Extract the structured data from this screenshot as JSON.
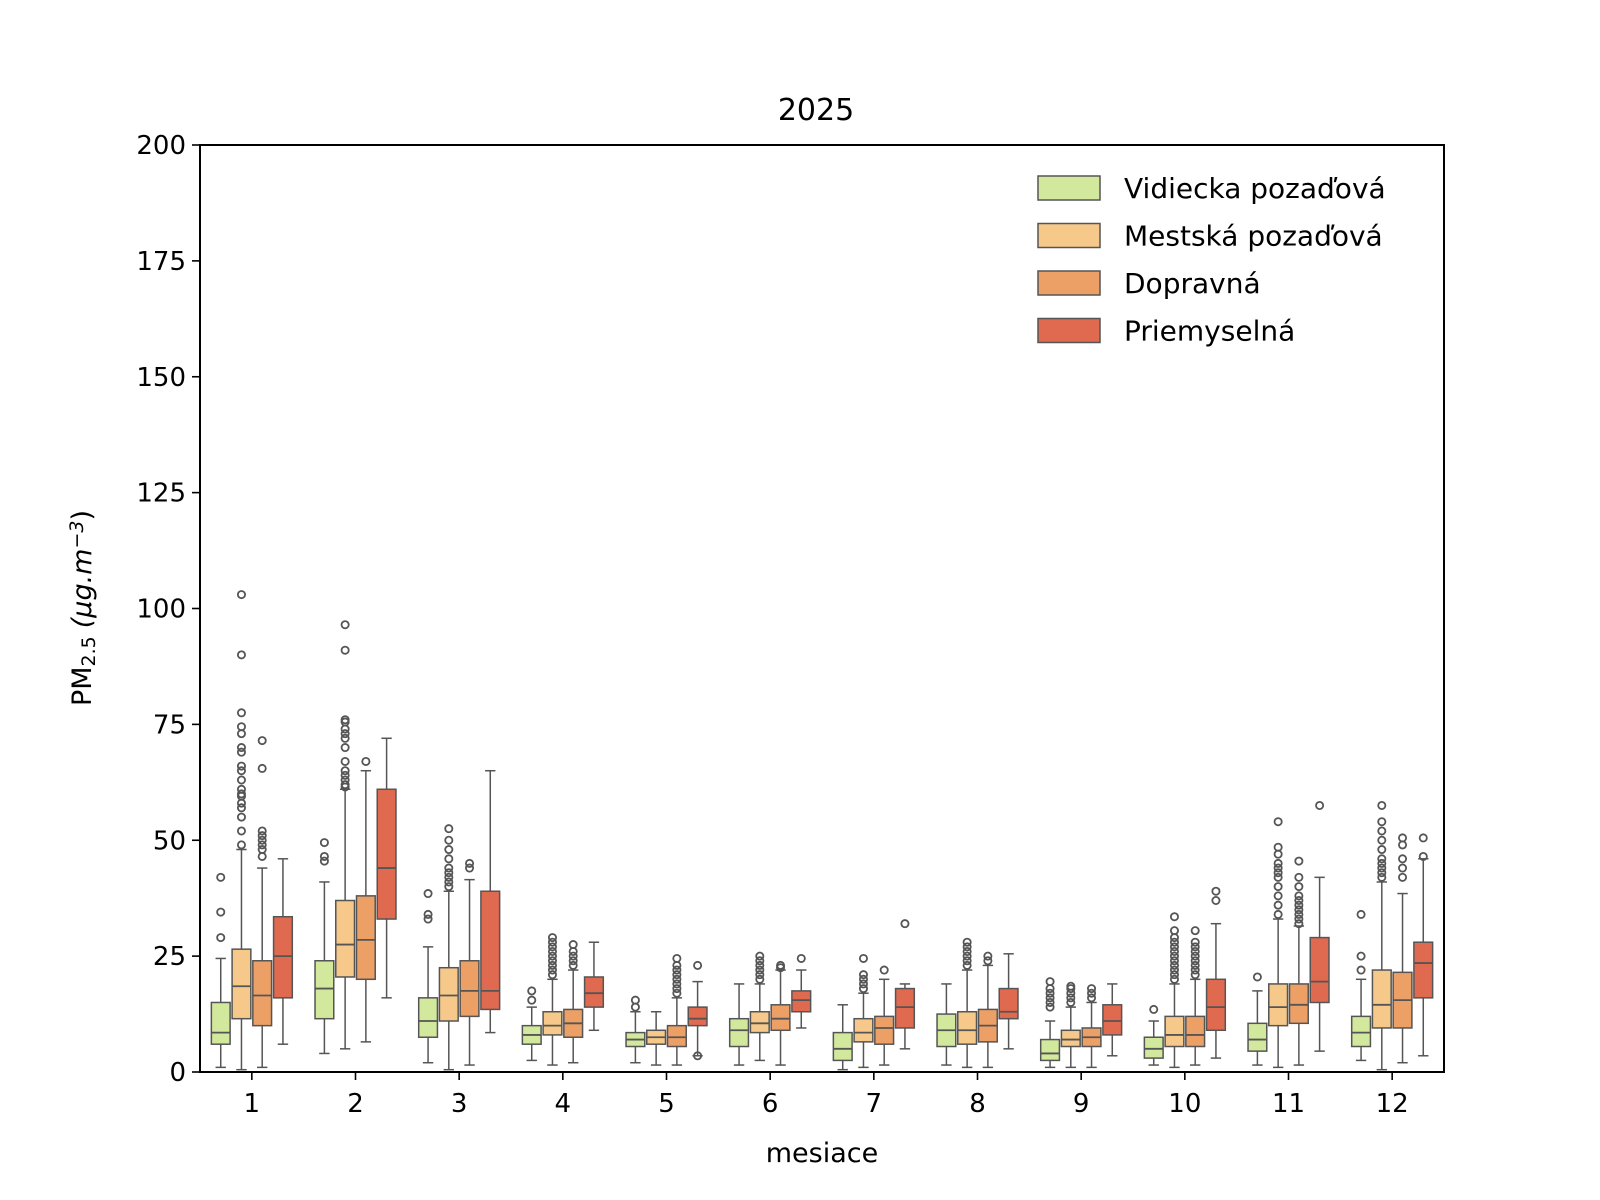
{
  "chart_data": {
    "type": "box",
    "title": "2025",
    "xlabel": "mesiace",
    "ylabel_main": "PM",
    "ylabel_sub": "2.5",
    "ylabel_unit": "(µg.m",
    "ylabel_sup": "−3",
    "ylabel_close": ")",
    "ylim": [
      0,
      200
    ],
    "yticks": [
      0,
      25,
      50,
      75,
      100,
      125,
      150,
      175,
      200
    ],
    "categories": [
      "1",
      "2",
      "3",
      "4",
      "5",
      "6",
      "7",
      "8",
      "9",
      "10",
      "11",
      "12"
    ],
    "colors": {
      "Vidiecka pozaďová": "#d2e89c",
      "Mestská pozaďová": "#f6c98a",
      "Dopravná": "#eca066",
      "Priemyselná": "#e06a50",
      "edge": "#555555"
    },
    "series": [
      {
        "name": "Vidiecka pozaďová",
        "boxes": [
          {
            "min": 1,
            "q1": 6,
            "med": 8.5,
            "q3": 15,
            "max": 24.5,
            "fliers": [
              29,
              34.5,
              42
            ]
          },
          {
            "min": 4,
            "q1": 11.5,
            "med": 18,
            "q3": 24,
            "max": 41,
            "fliers": [
              45.5,
              46.5,
              49.5
            ]
          },
          {
            "min": 2,
            "q1": 7.5,
            "med": 11,
            "q3": 16,
            "max": 27,
            "fliers": [
              33,
              34,
              38.5
            ]
          },
          {
            "min": 2.5,
            "q1": 6,
            "med": 8,
            "q3": 10,
            "max": 14,
            "fliers": [
              15.5,
              17.5
            ]
          },
          {
            "min": 2,
            "q1": 5.5,
            "med": 7,
            "q3": 8.5,
            "max": 13,
            "fliers": [
              14,
              15.5
            ]
          },
          {
            "min": 1.5,
            "q1": 5.5,
            "med": 9,
            "q3": 11.5,
            "max": 19,
            "fliers": []
          },
          {
            "min": 0.5,
            "q1": 2.5,
            "med": 5,
            "q3": 8.5,
            "max": 14.5,
            "fliers": []
          },
          {
            "min": 1.5,
            "q1": 5.5,
            "med": 9,
            "q3": 12.5,
            "max": 19,
            "fliers": []
          },
          {
            "min": 1,
            "q1": 2.5,
            "med": 4,
            "q3": 7,
            "max": 11,
            "fliers": [
              14,
              15,
              16,
              17,
              18,
              19.5
            ]
          },
          {
            "min": 1.5,
            "q1": 3,
            "med": 5,
            "q3": 7.5,
            "max": 11,
            "fliers": [
              13.5
            ]
          },
          {
            "min": 1.5,
            "q1": 4.5,
            "med": 7,
            "q3": 10.5,
            "max": 17.5,
            "fliers": [
              20.5
            ]
          },
          {
            "min": 2.5,
            "q1": 5.5,
            "med": 8.5,
            "q3": 12,
            "max": 20,
            "fliers": [
              22,
              25,
              34
            ]
          }
        ]
      },
      {
        "name": "Mestská pozaďová",
        "boxes": [
          {
            "min": 0.5,
            "q1": 11.5,
            "med": 18.5,
            "q3": 26.5,
            "max": 48,
            "fliers": [
              49,
              52,
              55,
              57,
              58,
              59.5,
              60,
              61,
              63,
              65,
              66,
              69,
              70,
              73,
              74.5,
              77.5,
              90,
              103
            ]
          },
          {
            "min": 5,
            "q1": 20.5,
            "med": 27.5,
            "q3": 37,
            "max": 61,
            "fliers": [
              61.5,
              62,
              63,
              64,
              65,
              67,
              70,
              72,
              73,
              74,
              75.5,
              76,
              91,
              96.5
            ]
          },
          {
            "min": 0.5,
            "q1": 11,
            "med": 16.5,
            "q3": 22.5,
            "max": 39,
            "fliers": [
              40,
              41,
              42,
              43,
              44,
              46,
              48,
              50,
              52.5
            ]
          },
          {
            "min": 1.5,
            "q1": 8,
            "med": 10,
            "q3": 13,
            "max": 20,
            "fliers": [
              21,
              22,
              23,
              24,
              25,
              26,
              27,
              28,
              29
            ]
          },
          {
            "min": 1.5,
            "q1": 6,
            "med": 7.5,
            "q3": 9,
            "max": 13,
            "fliers": []
          },
          {
            "min": 2.5,
            "q1": 8.5,
            "med": 10.5,
            "q3": 13,
            "max": 19,
            "fliers": [
              20,
              21,
              22,
              23,
              24,
              25
            ]
          },
          {
            "min": 1,
            "q1": 6.5,
            "med": 8.5,
            "q3": 11.5,
            "max": 17,
            "fliers": [
              18,
              19,
              20,
              21,
              24.5
            ]
          },
          {
            "min": 1,
            "q1": 6,
            "med": 9,
            "q3": 13,
            "max": 22,
            "fliers": [
              23,
              24,
              25,
              26,
              27,
              28
            ]
          },
          {
            "min": 1,
            "q1": 5.5,
            "med": 7,
            "q3": 9,
            "max": 14,
            "fliers": [
              15,
              16,
              17,
              18,
              18.5
            ]
          },
          {
            "min": 1,
            "q1": 5.5,
            "med": 8,
            "q3": 12,
            "max": 19,
            "fliers": [
              20,
              21,
              22,
              23,
              24,
              25,
              26,
              27,
              28,
              29,
              30.5,
              33.5
            ]
          },
          {
            "min": 1,
            "q1": 10,
            "med": 14,
            "q3": 19,
            "max": 33,
            "fliers": [
              34,
              36,
              38,
              40,
              42,
              43,
              44,
              45,
              47,
              48.5,
              54
            ]
          },
          {
            "min": 0.5,
            "q1": 9.5,
            "med": 14.5,
            "q3": 22,
            "max": 41,
            "fliers": [
              42,
              43,
              44,
              45,
              46,
              48,
              50,
              52,
              54,
              57.5
            ]
          }
        ]
      },
      {
        "name": "Dopravná",
        "boxes": [
          {
            "min": 1,
            "q1": 10,
            "med": 16.5,
            "q3": 24,
            "max": 44,
            "fliers": [
              46.5,
              48,
              49,
              50,
              51,
              52,
              65.5,
              71.5
            ]
          },
          {
            "min": 6.5,
            "q1": 20,
            "med": 28.5,
            "q3": 38,
            "max": 65,
            "fliers": [
              67
            ]
          },
          {
            "min": 1.5,
            "q1": 12,
            "med": 17.5,
            "q3": 24,
            "max": 41.5,
            "fliers": [
              44,
              45
            ]
          },
          {
            "min": 2,
            "q1": 7.5,
            "med": 10.5,
            "q3": 13.5,
            "max": 22,
            "fliers": [
              23,
              24,
              25,
              26,
              27.5
            ]
          },
          {
            "min": 1.5,
            "q1": 5.5,
            "med": 7.5,
            "q3": 10,
            "max": 16,
            "fliers": [
              17,
              18,
              19,
              20,
              21,
              22,
              23,
              24.5
            ]
          },
          {
            "min": 1.5,
            "q1": 9,
            "med": 11.5,
            "q3": 14.5,
            "max": 22,
            "fliers": [
              22.5,
              23
            ]
          },
          {
            "min": 1.5,
            "q1": 6,
            "med": 9.5,
            "q3": 12,
            "max": 20,
            "fliers": [
              22
            ]
          },
          {
            "min": 1,
            "q1": 6.5,
            "med": 10,
            "q3": 13.5,
            "max": 23,
            "fliers": [
              24,
              25
            ]
          },
          {
            "min": 1,
            "q1": 5.5,
            "med": 7.5,
            "q3": 9.5,
            "max": 15,
            "fliers": [
              16,
              17,
              18
            ]
          },
          {
            "min": 1.5,
            "q1": 5.5,
            "med": 8,
            "q3": 12,
            "max": 20,
            "fliers": [
              21,
              22,
              23,
              24,
              25,
              26,
              27,
              28,
              30.5
            ]
          },
          {
            "min": 1.5,
            "q1": 10.5,
            "med": 14.5,
            "q3": 19,
            "max": 31.5,
            "fliers": [
              32,
              33,
              34,
              35,
              36,
              37,
              38,
              40,
              42,
              45.5
            ]
          },
          {
            "min": 2,
            "q1": 9.5,
            "med": 15.5,
            "q3": 21.5,
            "max": 38.5,
            "fliers": [
              42,
              44,
              46,
              49,
              50.5
            ]
          }
        ]
      },
      {
        "name": "Priemyselná",
        "boxes": [
          {
            "min": 6,
            "q1": 16,
            "med": 25,
            "q3": 33.5,
            "max": 46,
            "fliers": []
          },
          {
            "min": 16,
            "q1": 33,
            "med": 44,
            "q3": 61,
            "max": 72,
            "fliers": []
          },
          {
            "min": 8.5,
            "q1": 13.5,
            "med": 17.5,
            "q3": 39,
            "max": 65,
            "fliers": []
          },
          {
            "min": 9,
            "q1": 14,
            "med": 17,
            "q3": 20.5,
            "max": 28,
            "fliers": []
          },
          {
            "min": 3.5,
            "q1": 10,
            "med": 11.5,
            "q3": 14,
            "max": 19.5,
            "fliers": [
              3.5,
              23
            ]
          },
          {
            "min": 9.5,
            "q1": 13,
            "med": 15.5,
            "q3": 17.5,
            "max": 22,
            "fliers": [
              24.5
            ]
          },
          {
            "min": 5,
            "q1": 9.5,
            "med": 14,
            "q3": 18,
            "max": 19,
            "fliers": [
              32
            ]
          },
          {
            "min": 5,
            "q1": 11.5,
            "med": 13,
            "q3": 18,
            "max": 25.5,
            "fliers": []
          },
          {
            "min": 3.5,
            "q1": 8,
            "med": 11,
            "q3": 14.5,
            "max": 19,
            "fliers": []
          },
          {
            "min": 3,
            "q1": 9,
            "med": 14,
            "q3": 20,
            "max": 32,
            "fliers": [
              37,
              39
            ]
          },
          {
            "min": 4.5,
            "q1": 15,
            "med": 19.5,
            "q3": 29,
            "max": 42,
            "fliers": [
              57.5
            ]
          },
          {
            "min": 3.5,
            "q1": 16,
            "med": 23.5,
            "q3": 28,
            "max": 46,
            "fliers": [
              46.5,
              50.5
            ]
          }
        ]
      }
    ]
  }
}
